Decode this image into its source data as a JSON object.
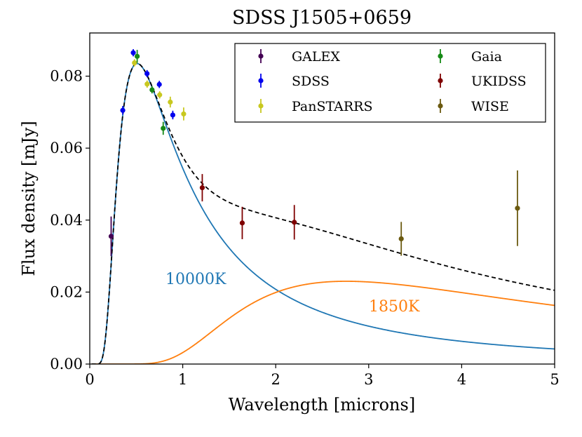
{
  "chart_data": {
    "type": "scatter",
    "title": "SDSS J1505+0659",
    "xlabel": "Wavelength [microns]",
    "ylabel": "Flux density [mJy]",
    "xlim": [
      0,
      5
    ],
    "ylim": [
      0,
      0.092
    ],
    "xticks": [
      0,
      1,
      2,
      3,
      4,
      5
    ],
    "xtick_labels": [
      "0",
      "1",
      "2",
      "3",
      "4",
      "5"
    ],
    "yticks": [
      0.0,
      0.02,
      0.04,
      0.06,
      0.08
    ],
    "ytick_labels": [
      "0.00",
      "0.02",
      "0.04",
      "0.06",
      "0.08"
    ],
    "grid": false,
    "legend_position": "top-right",
    "model_curves": [
      {
        "name": "10000K",
        "label": "10000K",
        "color": "#1f77b4",
        "style": "solid",
        "temperature": 10000,
        "peak": 0.0835
      },
      {
        "name": "1850K",
        "label": "1850K",
        "color": "#ff7f0e",
        "style": "solid",
        "temperature": 1850,
        "peak": 0.023
      },
      {
        "name": "sum",
        "label": "",
        "color": "#000000",
        "style": "dashed"
      }
    ],
    "series": [
      {
        "name": "GALEX",
        "color": "#440154",
        "points": [
          {
            "x": 0.23,
            "y": 0.0355,
            "err": 0.0055
          }
        ]
      },
      {
        "name": "SDSS",
        "color": "#0000ee",
        "points": [
          {
            "x": 0.355,
            "y": 0.0705,
            "err": 0.0012
          },
          {
            "x": 0.468,
            "y": 0.0865,
            "err": 0.001
          },
          {
            "x": 0.616,
            "y": 0.0807,
            "err": 0.001
          },
          {
            "x": 0.748,
            "y": 0.0777,
            "err": 0.001
          },
          {
            "x": 0.893,
            "y": 0.0692,
            "err": 0.0012
          }
        ]
      },
      {
        "name": "PanSTARRS",
        "color": "#c8c820",
        "points": [
          {
            "x": 0.481,
            "y": 0.0837,
            "err": 0.001
          },
          {
            "x": 0.617,
            "y": 0.0778,
            "err": 0.001
          },
          {
            "x": 0.752,
            "y": 0.0748,
            "err": 0.001
          },
          {
            "x": 0.866,
            "y": 0.0728,
            "err": 0.0015
          },
          {
            "x": 1.01,
            "y": 0.0695,
            "err": 0.0018
          }
        ]
      },
      {
        "name": "Gaia",
        "color": "#168a16",
        "points": [
          {
            "x": 0.51,
            "y": 0.0855,
            "err": 0.0018
          },
          {
            "x": 0.67,
            "y": 0.0762,
            "err": 0.001
          },
          {
            "x": 0.79,
            "y": 0.0655,
            "err": 0.0018
          }
        ]
      },
      {
        "name": "UKIDSS",
        "color": "#7f0000",
        "points": [
          {
            "x": 1.21,
            "y": 0.049,
            "err": 0.0038
          },
          {
            "x": 1.64,
            "y": 0.0392,
            "err": 0.0045
          },
          {
            "x": 2.2,
            "y": 0.0394,
            "err": 0.0048
          }
        ]
      },
      {
        "name": "WISE",
        "color": "#6b5a10",
        "points": [
          {
            "x": 3.35,
            "y": 0.0348,
            "err": 0.0047
          },
          {
            "x": 4.6,
            "y": 0.0433,
            "err": 0.0105
          }
        ]
      }
    ],
    "legend": [
      "GALEX",
      "Gaia",
      "SDSS",
      "UKIDSS",
      "PanSTARRS",
      "WISE"
    ]
  }
}
